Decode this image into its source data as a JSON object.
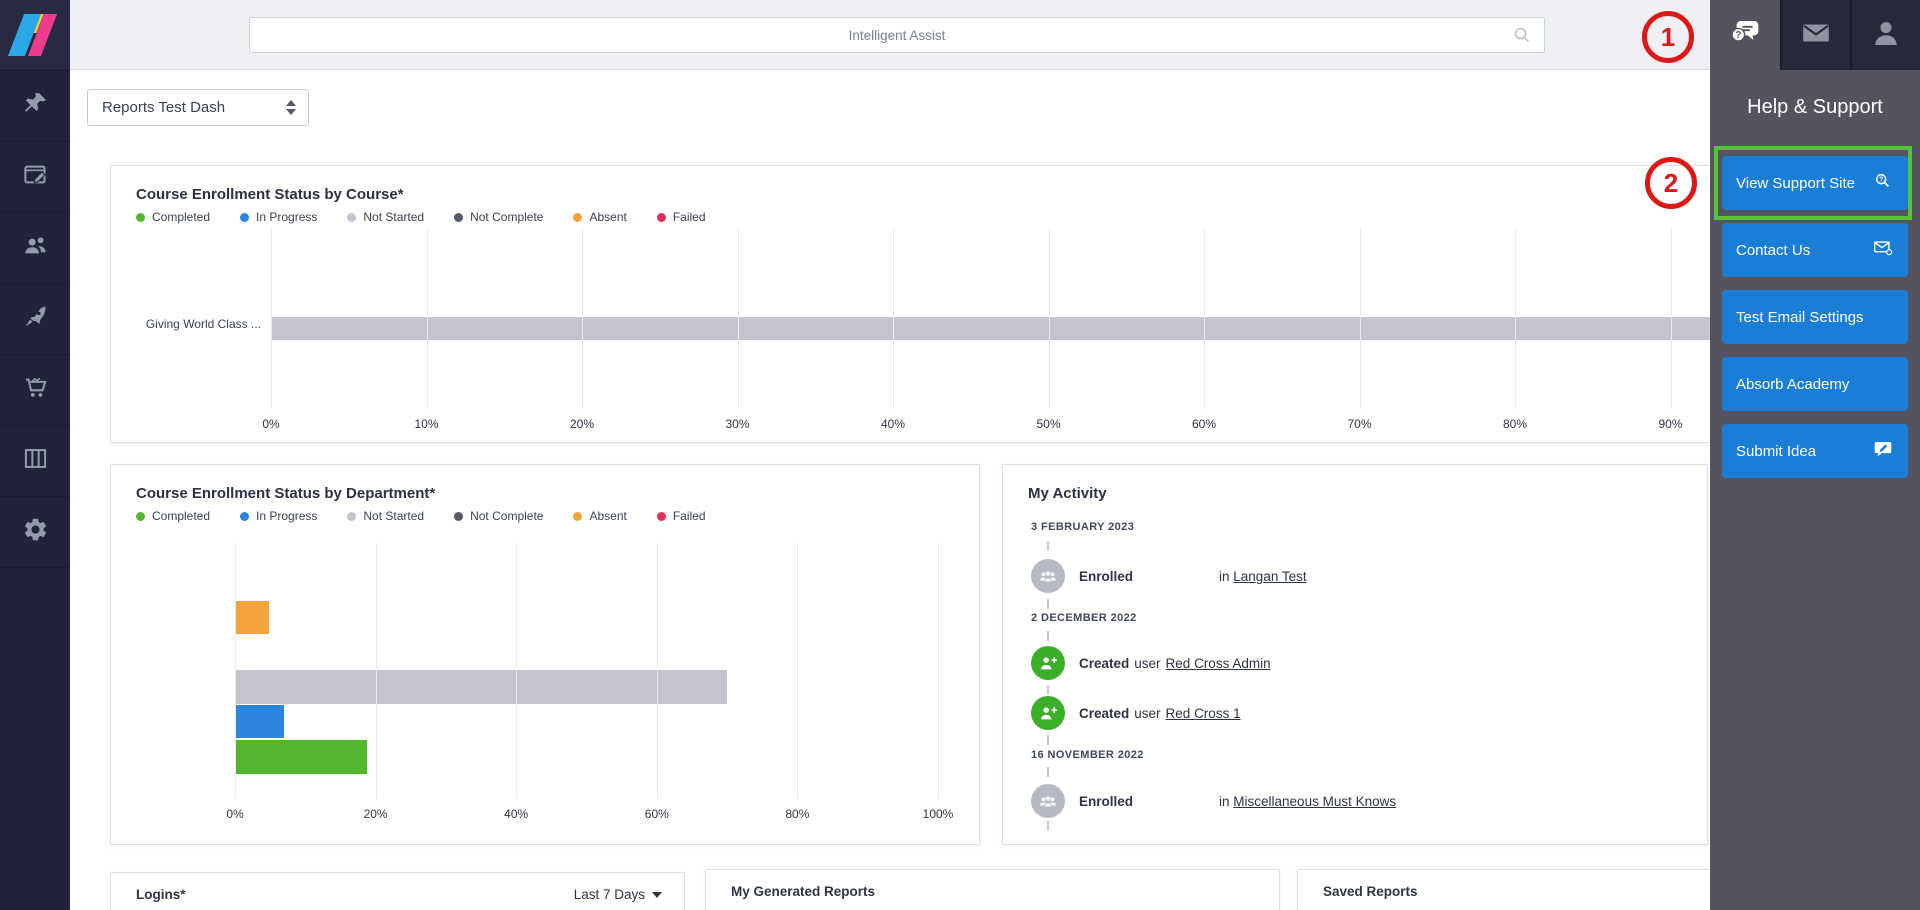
{
  "topbar": {
    "search_placeholder": "Intelligent Assist"
  },
  "sidebar": {
    "items": [
      "pin",
      "compose",
      "users",
      "rocket",
      "cart",
      "columns",
      "settings"
    ]
  },
  "header_icons": [
    "help",
    "messages",
    "profile"
  ],
  "dashboard_selector": {
    "value": "Reports Test Dash"
  },
  "annotations": {
    "step_1": "1",
    "step_2": "2"
  },
  "help_panel": {
    "title": "Help & Support",
    "buttons": [
      {
        "label": "View Support Site",
        "icon": "search-question"
      },
      {
        "label": "Contact Us",
        "icon": "envelope"
      },
      {
        "label": "Test Email Settings",
        "icon": ""
      },
      {
        "label": "Absorb Academy",
        "icon": ""
      },
      {
        "label": "Submit Idea",
        "icon": "speech-bubble"
      }
    ]
  },
  "chart_data": [
    {
      "type": "bar",
      "orientation": "horizontal",
      "title": "Course Enrollment Status by Course*",
      "legend": [
        {
          "label": "Completed",
          "color": "#52b72f"
        },
        {
          "label": "In Progress",
          "color": "#2d86dd"
        },
        {
          "label": "Not Started",
          "color": "#c3c4cd"
        },
        {
          "label": "Not Complete",
          "color": "#555a68"
        },
        {
          "label": "Absent",
          "color": "#f2a33a"
        },
        {
          "label": "Failed",
          "color": "#e62e5c"
        }
      ],
      "categories": [
        "Giving World Class ..."
      ],
      "series": [
        {
          "name": "Not Started",
          "values": [
            100
          ]
        }
      ],
      "x_ticks": [
        "0%",
        "10%",
        "20%",
        "30%",
        "40%",
        "50%",
        "60%",
        "70%",
        "80%",
        "90%"
      ],
      "xlim": [
        0,
        100
      ],
      "grid": true,
      "bar": {
        "series": "Not Started",
        "value": 100,
        "width": "100%",
        "color": "#c3c4cd"
      }
    },
    {
      "type": "bar",
      "orientation": "horizontal",
      "title": "Course Enrollment Status by Department*",
      "legend": [
        {
          "label": "Completed",
          "color": "#52b72f"
        },
        {
          "label": "In Progress",
          "color": "#2d86dd"
        },
        {
          "label": "Not Started",
          "color": "#c3c4cd"
        },
        {
          "label": "Not Complete",
          "color": "#555a68"
        },
        {
          "label": "Absent",
          "color": "#f2a33a"
        },
        {
          "label": "Failed",
          "color": "#e62e5c"
        }
      ],
      "categories": [
        ""
      ],
      "series": [
        {
          "name": "Absent",
          "values": [
            4.8
          ]
        },
        {
          "name": "Not Started",
          "values": [
            70
          ]
        },
        {
          "name": "In Progress",
          "values": [
            7
          ]
        },
        {
          "name": "Completed",
          "values": [
            18.8
          ]
        }
      ],
      "x_ticks": [
        "0%",
        "20%",
        "40%",
        "60%",
        "80%",
        "100%"
      ],
      "xlim": [
        0,
        100
      ],
      "grid": true,
      "bars": [
        {
          "series": "Absent",
          "value": 4.8,
          "width": "4.8%",
          "color": "#f2a33a"
        },
        {
          "series": "Not Started",
          "value": 70,
          "width": "70%",
          "color": "#c3c4cd"
        },
        {
          "series": "In Progress",
          "value": 7,
          "width": "7%",
          "color": "#2d86dd"
        },
        {
          "series": "Completed",
          "value": 18.8,
          "width": "18.8%",
          "color": "#52b72f"
        }
      ]
    }
  ],
  "my_activity": {
    "title": "My Activity",
    "events": [
      {
        "type": "date",
        "label": "3 FEBRUARY 2023"
      },
      {
        "type": "entry",
        "icon": "group",
        "action": "Enrolled",
        "prefix": "in",
        "link": "Langan Test"
      },
      {
        "type": "date",
        "label": "2 DECEMBER 2022"
      },
      {
        "type": "entry",
        "icon": "user-add",
        "action": "Created",
        "prefix": "user",
        "link": "Red Cross Admin"
      },
      {
        "type": "entry",
        "icon": "user-add",
        "action": "Created",
        "prefix": "user",
        "link": "Red Cross 1"
      },
      {
        "type": "date",
        "label": "16 NOVEMBER 2022"
      },
      {
        "type": "entry",
        "icon": "group",
        "action": "Enrolled",
        "prefix": "in",
        "link": "Miscellaneous Must Knows"
      }
    ]
  },
  "bottom_panels": {
    "logins": {
      "title": "Logins*",
      "range_label": "Last 7 Days"
    },
    "generated_reports": {
      "title": "My Generated Reports"
    },
    "saved_reports": {
      "title": "Saved Reports"
    }
  },
  "colors": {
    "accent_blue": "#1b7ed6",
    "annotation_red": "#de1717",
    "highlight_green": "#57c23b",
    "sidebar_bg": "#20233a",
    "flyout_bg": "#53545f",
    "topbar_bg": "#eff0f4",
    "activity_green": "#3dae2b",
    "activity_gray": "#b7b9c3"
  }
}
